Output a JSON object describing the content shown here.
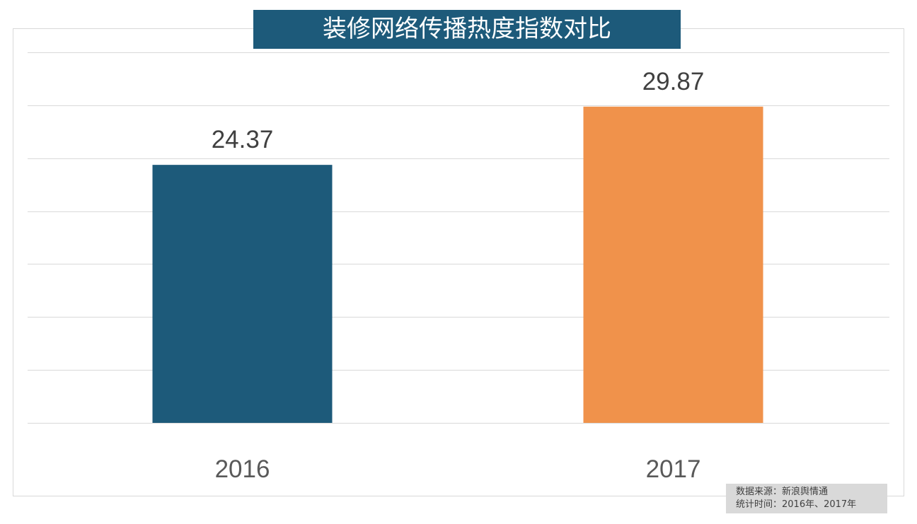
{
  "chart_data": {
    "type": "bar",
    "title": "装修网络传播热度指数对比",
    "categories": [
      "2016",
      "2017"
    ],
    "values": [
      24.37,
      29.87
    ],
    "colors": [
      "#1d5a7a",
      "#f0924b"
    ],
    "data_labels": [
      "24.37",
      "29.87"
    ],
    "xlabel": "",
    "ylabel": "",
    "ylim": [
      0,
      35
    ],
    "grid_step": 5,
    "grid": true,
    "y_tick_labels_shown": false
  },
  "source": {
    "line1": "数据来源：新浪舆情通",
    "line2": "统计时间：2016年、2017年"
  }
}
